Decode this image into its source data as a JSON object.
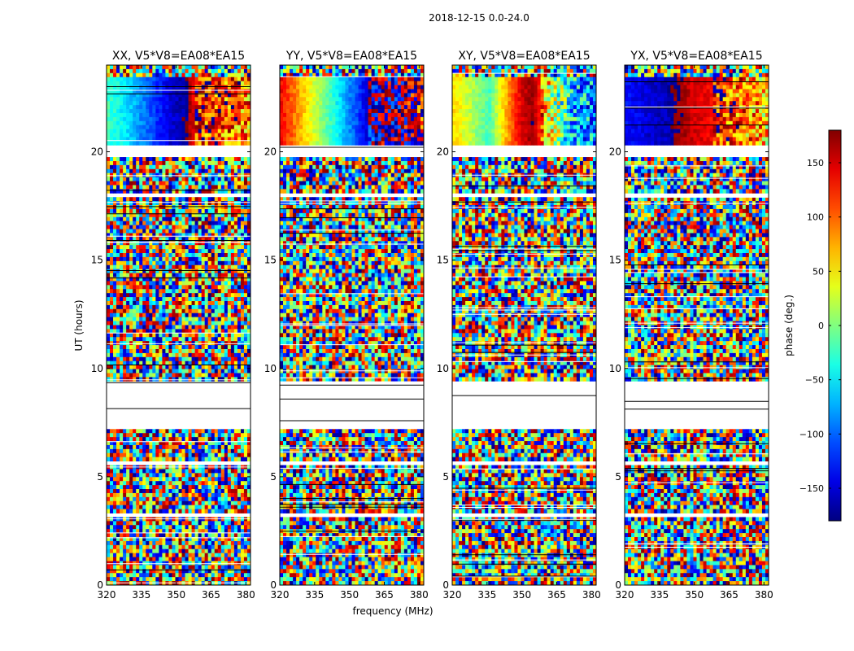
{
  "figure_title": "2018-12-15 0.0-24.0",
  "colors": {
    "axis": "#000000",
    "background": "#ffffff",
    "gap": "#ffffff"
  },
  "chart_data": {
    "type": "heatmap",
    "colormap": "jet",
    "xlabel": "frequency (MHz)",
    "ylabel": "UT (hours)",
    "xlim": [
      320,
      382
    ],
    "ylim": [
      0,
      24
    ],
    "xticks": [
      320,
      335,
      350,
      365,
      380
    ],
    "yticks": [
      0,
      5,
      10,
      15,
      20
    ],
    "colorbar": {
      "label": "phase (deg.)",
      "range": [
        -180,
        180
      ],
      "ticks": [
        150,
        100,
        50,
        0,
        -50,
        -100,
        -150
      ],
      "tick_labels": [
        "150",
        "100",
        "50",
        "0",
        "−50",
        "−100",
        "−150"
      ]
    },
    "flagged_ut_ranges": [
      [
        7.2,
        9.4
      ],
      [
        3.1,
        3.3
      ],
      [
        5.6,
        5.8
      ],
      [
        17.9,
        18.05
      ],
      [
        16.2,
        16.3
      ],
      [
        19.7,
        20.3
      ]
    ],
    "calibrator_ut_range": [
      20.3,
      23.4
    ],
    "panels": [
      {
        "title": "XX, V5*V8=EA08*EA15",
        "polarization": "XX",
        "calibrator_phase_profile": [
          [
            320,
            -20
          ],
          [
            330,
            -60
          ],
          [
            340,
            -110
          ],
          [
            348,
            -150
          ],
          [
            354,
            -170
          ],
          [
            357,
            150
          ],
          [
            362,
            120
          ],
          [
            375,
            110
          ],
          [
            382,
            90
          ]
        ]
      },
      {
        "title": "YY, V5*V8=EA08*EA15",
        "polarization": "YY",
        "calibrator_phase_profile": [
          [
            320,
            140
          ],
          [
            328,
            80
          ],
          [
            336,
            20
          ],
          [
            344,
            -40
          ],
          [
            352,
            -100
          ],
          [
            358,
            -150
          ],
          [
            364,
            -170
          ],
          [
            372,
            -170
          ],
          [
            382,
            130
          ]
        ]
      },
      {
        "title": "XY, V5*V8=EA08*EA15",
        "polarization": "XY",
        "calibrator_phase_profile": [
          [
            320,
            60
          ],
          [
            328,
            20
          ],
          [
            336,
            -20
          ],
          [
            344,
            80
          ],
          [
            350,
            150
          ],
          [
            355,
            170
          ],
          [
            362,
            40
          ],
          [
            372,
            -60
          ],
          [
            382,
            -90
          ]
        ]
      },
      {
        "title": "YX, V5*V8=EA08*EA15",
        "polarization": "YX",
        "calibrator_phase_profile": [
          [
            320,
            -130
          ],
          [
            330,
            -150
          ],
          [
            338,
            -160
          ],
          [
            344,
            170
          ],
          [
            350,
            150
          ],
          [
            356,
            140
          ],
          [
            364,
            120
          ],
          [
            374,
            90
          ],
          [
            382,
            60
          ]
        ]
      }
    ]
  }
}
